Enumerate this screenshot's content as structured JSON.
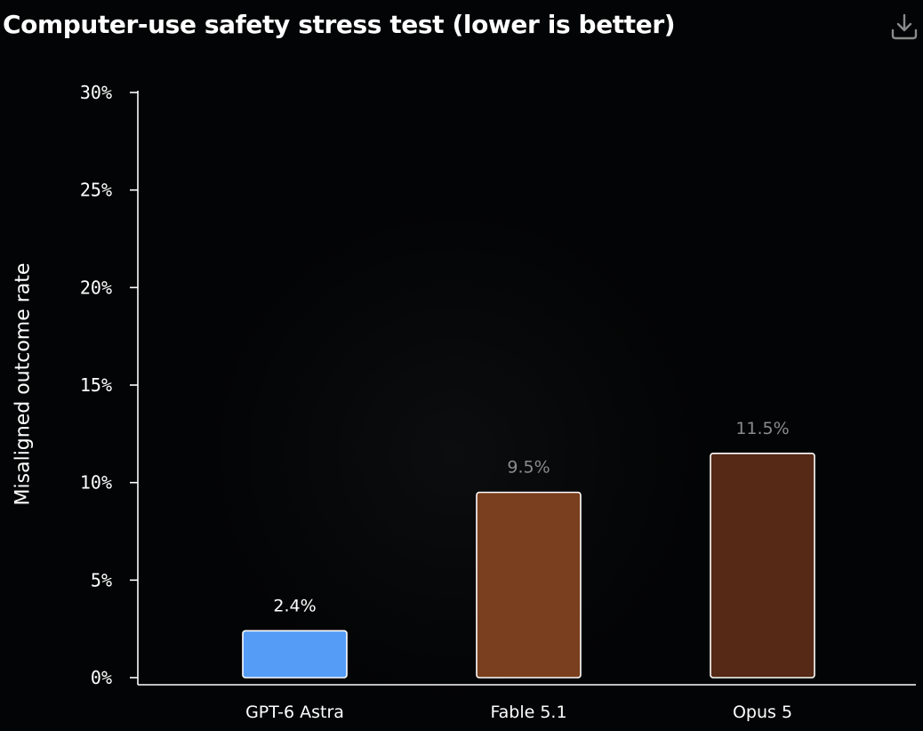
{
  "header": {
    "title": "Computer-use safety stress test (lower is better)",
    "download_icon": "download-icon"
  },
  "chart_data": {
    "type": "bar",
    "title": "Computer-use safety stress test (lower is better)",
    "xlabel": "",
    "ylabel": "Misaligned outcome rate",
    "ylim": [
      0,
      30
    ],
    "yticks": [
      0,
      5,
      10,
      15,
      20,
      25,
      30
    ],
    "ytick_labels": [
      "0%",
      "5%",
      "10%",
      "15%",
      "20%",
      "25%",
      "30%"
    ],
    "categories": [
      "GPT-6 Astra",
      "Fable 5.1",
      "Opus 5"
    ],
    "values": [
      2.4,
      9.5,
      11.5
    ],
    "value_labels": [
      "2.4%",
      "9.5%",
      "11.5%"
    ],
    "colors": [
      "#559cf7",
      "#7a3f1e",
      "#552915"
    ],
    "value_label_colors": [
      "#ffffff",
      "#8b8b8b",
      "#8b8b8b"
    ],
    "bar_stroke": "#ffffff",
    "grid": false,
    "legend": "none"
  }
}
